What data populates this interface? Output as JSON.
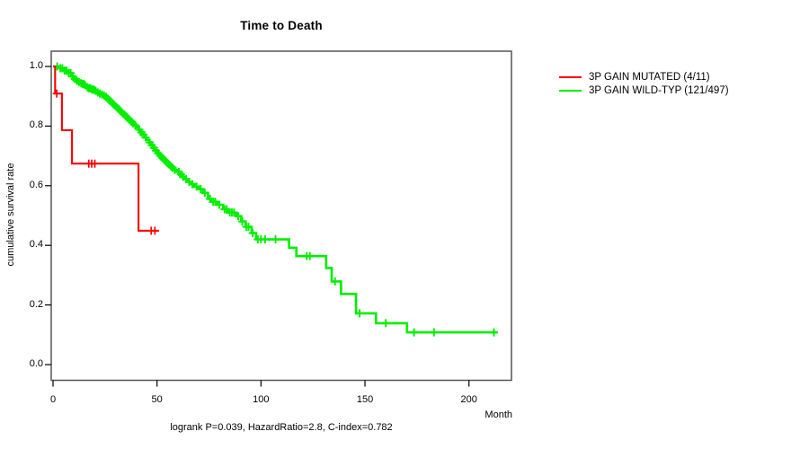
{
  "title": "Time to Death",
  "footer_stats": "logrank P=0.039, HazardRatio=2.8, C-index=0.782",
  "chart_data": {
    "type": "line",
    "subtype": "kaplan-meier-step",
    "title": "Time to Death",
    "xlabel": "Month",
    "ylabel": "cumulative survival rate",
    "xlim": [
      0,
      220
    ],
    "ylim": [
      0.0,
      1.0
    ],
    "xticks": [
      0,
      50,
      100,
      150,
      200
    ],
    "yticks": [
      0.0,
      0.2,
      0.4,
      0.6,
      0.8,
      1.0
    ],
    "grid": false,
    "legend_position": "right-outside",
    "annotation": "logrank P=0.039, HazardRatio=2.8, C-index=0.782",
    "series": [
      {
        "name": "3P GAIN MUTATED (4/11)",
        "color": "#ff0000",
        "events": "4/11",
        "end_time": 50.9,
        "steps": [
          [
            0,
            1.0
          ],
          [
            1,
            0.909
          ],
          [
            4.3,
            0.786
          ],
          [
            9.1,
            0.674
          ],
          [
            41.1,
            0.449
          ]
        ],
        "censors": [
          1.8,
          17.2,
          18.6,
          20.1,
          47.2,
          49.0
        ]
      },
      {
        "name": "3P GAIN WILD-TYP (121/497)",
        "color": "#00ee00",
        "events": "121/497",
        "end_time": 213.7,
        "steps": [
          [
            0,
            1.0
          ],
          [
            3,
            0.994
          ],
          [
            5,
            0.986
          ],
          [
            7,
            0.978
          ],
          [
            9,
            0.966
          ],
          [
            10,
            0.958
          ],
          [
            11,
            0.952
          ],
          [
            12,
            0.948
          ],
          [
            13,
            0.944
          ],
          [
            14,
            0.941
          ],
          [
            15,
            0.937
          ],
          [
            16,
            0.93
          ],
          [
            17,
            0.927
          ],
          [
            18,
            0.924
          ],
          [
            19,
            0.922
          ],
          [
            20,
            0.918
          ],
          [
            21,
            0.913
          ],
          [
            22,
            0.909
          ],
          [
            23,
            0.906
          ],
          [
            24,
            0.903
          ],
          [
            25,
            0.898
          ],
          [
            26,
            0.891
          ],
          [
            27,
            0.884
          ],
          [
            28,
            0.877
          ],
          [
            29,
            0.871
          ],
          [
            30,
            0.864
          ],
          [
            31,
            0.857
          ],
          [
            32,
            0.85
          ],
          [
            33,
            0.843
          ],
          [
            34,
            0.837
          ],
          [
            35,
            0.83
          ],
          [
            36,
            0.823
          ],
          [
            37,
            0.816
          ],
          [
            38,
            0.809
          ],
          [
            39,
            0.803
          ],
          [
            40,
            0.796
          ],
          [
            41,
            0.788
          ],
          [
            42,
            0.779
          ],
          [
            43,
            0.771
          ],
          [
            44,
            0.762
          ],
          [
            45,
            0.754
          ],
          [
            46,
            0.745
          ],
          [
            47,
            0.736
          ],
          [
            48,
            0.727
          ],
          [
            49,
            0.718
          ],
          [
            50,
            0.709
          ],
          [
            51,
            0.701
          ],
          [
            52,
            0.694
          ],
          [
            53,
            0.687
          ],
          [
            54,
            0.68
          ],
          [
            55,
            0.673
          ],
          [
            56,
            0.666
          ],
          [
            57,
            0.66
          ],
          [
            58,
            0.653
          ],
          [
            60,
            0.646
          ],
          [
            61,
            0.638
          ],
          [
            62,
            0.63
          ],
          [
            63,
            0.622
          ],
          [
            65,
            0.613
          ],
          [
            66,
            0.605
          ],
          [
            68,
            0.597
          ],
          [
            70,
            0.589
          ],
          [
            72,
            0.576
          ],
          [
            74.5,
            0.556
          ],
          [
            76,
            0.546
          ],
          [
            79,
            0.536
          ],
          [
            81.8,
            0.521
          ],
          [
            84,
            0.51
          ],
          [
            88,
            0.498
          ],
          [
            90.5,
            0.48
          ],
          [
            92.6,
            0.462
          ],
          [
            95.5,
            0.441
          ],
          [
            97.7,
            0.42
          ],
          [
            113.5,
            0.392
          ],
          [
            117,
            0.364
          ],
          [
            131.3,
            0.324
          ],
          [
            134,
            0.279
          ],
          [
            138.5,
            0.237
          ],
          [
            145.7,
            0.172
          ],
          [
            155.3,
            0.139
          ],
          [
            170.2,
            0.108
          ]
        ],
        "censors": [
          2,
          3.5,
          4.5,
          5.5,
          6.5,
          7.5,
          8.5,
          9.5,
          10.5,
          11.5,
          12.5,
          13.5,
          14.2,
          14.8,
          15.5,
          16.5,
          17.2,
          17.8,
          18.5,
          19.2,
          19.8,
          20.5,
          21.5,
          22.5,
          23.5,
          24.5,
          25.5,
          26.5,
          27.5,
          28.5,
          29.5,
          30.5,
          31.5,
          32.5,
          33.5,
          34.5,
          35.5,
          36.5,
          37.5,
          38.5,
          39.5,
          41.5,
          42.5,
          43.5,
          44.5,
          46.5,
          47.5,
          48.5,
          49.5,
          50.5,
          51.5,
          52.5,
          53.5,
          54.5,
          55.5,
          56.5,
          57.5,
          58.5,
          60.5,
          61.5,
          62.5,
          64,
          65.5,
          67,
          69,
          71,
          73,
          75.5,
          77,
          78,
          80,
          82.5,
          83.5,
          85,
          86,
          87,
          89,
          91,
          93,
          94,
          96,
          98.5,
          100,
          102,
          107,
          122,
          123.5,
          135.6,
          147.4,
          160,
          173.6,
          183.2,
          212
        ]
      }
    ]
  },
  "legend": {
    "items": [
      {
        "label": "3P GAIN MUTATED (4/11)",
        "color": "#ff0000"
      },
      {
        "label": "3P GAIN WILD-TYP (121/497)",
        "color": "#00ee00"
      }
    ]
  },
  "axis_color": "#000000",
  "box_color": "#555555"
}
